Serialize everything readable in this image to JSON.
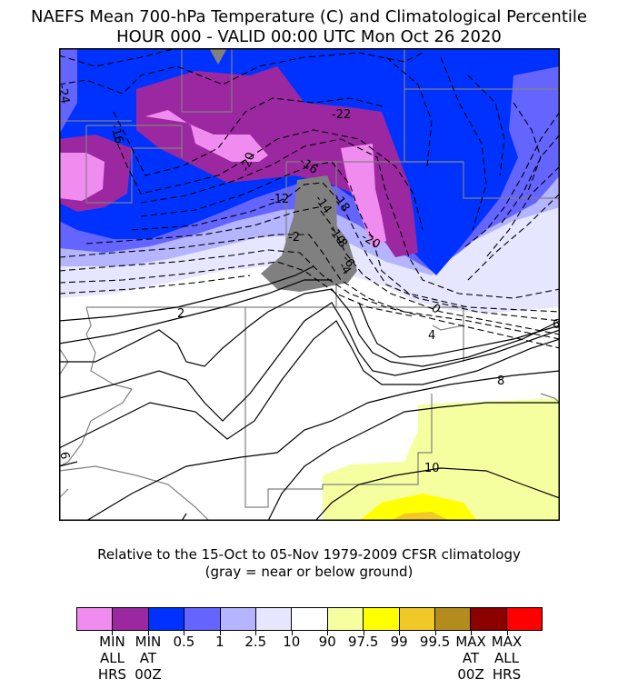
{
  "title": {
    "line1": "NAEFS Mean 700-hPa Temperature (C) and Climatological Percentile",
    "line2": "HOUR 000 - VALID 00:00 UTC Mon Oct 26 2020"
  },
  "map": {
    "contour_labels": [
      "-24",
      "-16",
      "-22",
      "-20",
      "-16",
      "-12",
      "-14",
      "-18",
      "-10",
      "-8",
      "-20",
      "-6",
      "-2",
      "-4",
      "2",
      "0",
      "4",
      "6",
      "8",
      "10",
      "6"
    ]
  },
  "notes": {
    "line1": "Relative to the 15-Oct to 05-Nov 1979-2009 CFSR climatology",
    "line2": "(gray = near or below ground)"
  },
  "colorbar": {
    "colors": [
      "#f08cf0",
      "#9b28a0",
      "#0032ff",
      "#6464ff",
      "#b4b4ff",
      "#e6e6ff",
      "#ffffff",
      "#f5ffa0",
      "#ffff00",
      "#f0c828",
      "#b48c1e",
      "#8c0000",
      "#ff0000"
    ],
    "labels": [
      [
        "MIN",
        "ALL",
        "HRS"
      ],
      [
        "MIN",
        "AT",
        "00Z"
      ],
      [
        "0.5"
      ],
      [
        "1"
      ],
      [
        "2.5"
      ],
      [
        "10"
      ],
      [
        "90"
      ],
      [
        "97.5"
      ],
      [
        "99"
      ],
      [
        "99.5"
      ],
      [
        "MAX",
        "AT",
        "00Z"
      ],
      [
        "MAX",
        "ALL",
        "HRS"
      ]
    ]
  }
}
